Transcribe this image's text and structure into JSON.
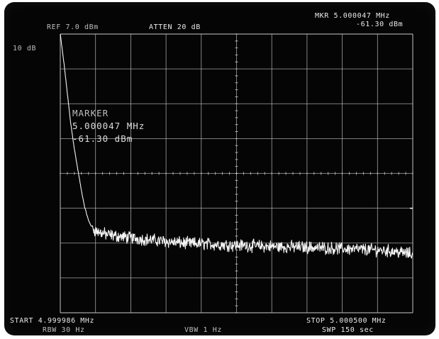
{
  "analyzer": {
    "ref_level": "REF 7.0 dBm",
    "atten": "ATTEN 20 dB",
    "marker_header_freq": "MKR 5.000047 MHz",
    "marker_header_amp": "-61.30 dBm",
    "scale": "10 dB",
    "marker_label": "MARKER",
    "marker_freq": "5.000047 MHz",
    "marker_amp": "-61.30 dBm",
    "start": "START 4.999986 MHz",
    "stop": "STOP 5.000500 MHz",
    "rbw": "RBW 30 Hz",
    "vbw": "VBW 1 Hz",
    "sweep": "SWP 150 sec"
  },
  "trace": {
    "points": [
      [
        0.0,
        0.0
      ],
      [
        0.01,
        -8
      ],
      [
        0.02,
        -17
      ],
      [
        0.03,
        -26
      ],
      [
        0.04,
        -33
      ],
      [
        0.05,
        -39
      ],
      [
        0.06,
        -45
      ],
      [
        0.07,
        -50
      ],
      [
        0.08,
        -53.5
      ],
      [
        0.09,
        -55.5
      ],
      [
        0.1,
        -56.5
      ],
      [
        0.13,
        -57.5
      ],
      [
        0.16,
        -58
      ],
      [
        0.2,
        -58.5
      ],
      [
        0.25,
        -59
      ],
      [
        0.3,
        -59.5
      ],
      [
        0.35,
        -60
      ],
      [
        0.4,
        -60.2
      ],
      [
        0.45,
        -60.4
      ],
      [
        0.5,
        -60.6
      ],
      [
        0.55,
        -60.8
      ],
      [
        0.6,
        -61
      ],
      [
        0.65,
        -61.1
      ],
      [
        0.7,
        -61.2
      ],
      [
        0.75,
        -61.4
      ],
      [
        0.8,
        -61.6
      ],
      [
        0.85,
        -61.8
      ],
      [
        0.9,
        -62
      ],
      [
        0.95,
        -62.4
      ],
      [
        1.0,
        -63.2
      ]
    ],
    "noise_dB": 1.4,
    "marker_x": 0.0
  }
}
